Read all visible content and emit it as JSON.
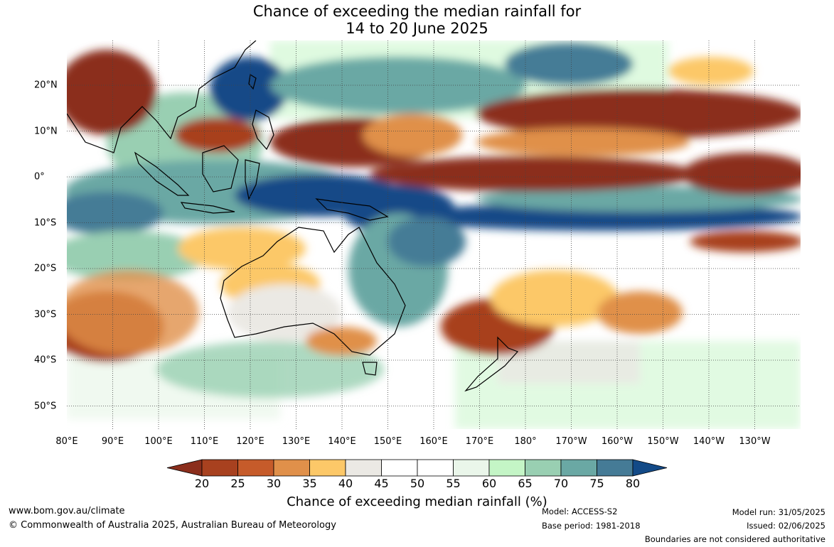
{
  "title": {
    "line1": "Chance of exceeding the median rainfall for",
    "line2": "14 to 20 June 2025"
  },
  "map": {
    "lon_labels": [
      "80°E",
      "90°E",
      "100°E",
      "110°E",
      "120°E",
      "130°E",
      "140°E",
      "150°E",
      "160°E",
      "170°E",
      "180°",
      "170°W",
      "160°W",
      "150°W",
      "140°W",
      "130°W"
    ],
    "lat_labels": [
      "20°N",
      "10°N",
      "0°",
      "10°S",
      "20°S",
      "30°S",
      "40°S",
      "50°S"
    ]
  },
  "colorbar": {
    "ticks": [
      "20",
      "25",
      "30",
      "35",
      "40",
      "45",
      "50",
      "55",
      "60",
      "65",
      "70",
      "75",
      "80"
    ],
    "colors": [
      "#8b2e1c",
      "#a8411f",
      "#c65b2a",
      "#e0904a",
      "#fcc868",
      "#ebe9e4",
      "#ffffff",
      "#ffffff",
      "#eaf6ea",
      "#c4f5c6",
      "#99cfb2",
      "#6aa8a4",
      "#457b96",
      "#134a87"
    ],
    "title": "Chance of exceeding median rainfall (%)"
  },
  "footer": {
    "website": "www.bom.gov.au/climate",
    "copyright": "© Commonwealth of Australia 2025, Australian Bureau of Meteorology",
    "model": "Model: ACCESS-S2",
    "base_period": "Base period: 1981-2018",
    "model_run": "Model run: 31/05/2025",
    "issued": "Issued: 02/06/2025",
    "disclaimer": "Boundaries are not considered authoritative"
  }
}
